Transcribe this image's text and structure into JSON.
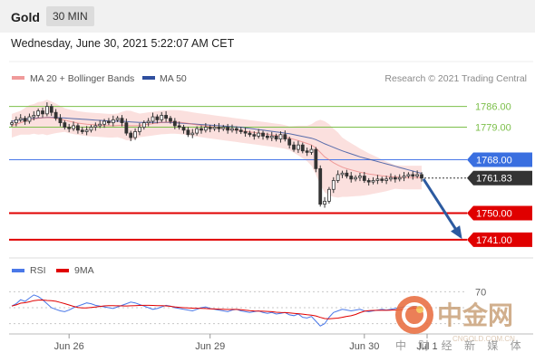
{
  "header": {
    "symbol": "Gold",
    "timeframe": "30 MIN"
  },
  "datetime": "Wednesday, June 30, 2021 5:22:07 AM CET",
  "legend": {
    "ma20_label": "MA 20 + Bollinger Bands",
    "ma50_label": "MA 50"
  },
  "credit": "Research © 2021 Trading Central",
  "rsi_legend": {
    "rsi_label": "RSI",
    "ma_label": "9MA"
  },
  "watermark": {
    "main": "中金网",
    "sub": "中 财 经 新 媒 体",
    "url": "CNGOLD.COM.CN"
  },
  "colors": {
    "candle": "#333333",
    "ma20": "#e86a6a",
    "ma50": "#2f4f9e",
    "bollinger": "#fbe0de",
    "green_level": "#7cbf4a",
    "blue_level": "#4a78e8",
    "red_level": "#e00000",
    "arrow": "#2c5aa0",
    "rsi": "#4a78e8",
    "rsi_ma": "#e00000"
  },
  "chart_data": {
    "type": "candlestick",
    "ylim": [
      1737,
      1792
    ],
    "x_ticks": [
      "Jun 26",
      "Jun 29",
      "Jun 30",
      "Jul 1"
    ],
    "closes": [
      1780.5,
      1781.5,
      1782.0,
      1781.0,
      1782.5,
      1783.0,
      1784.5,
      1783.5,
      1786.0,
      1784.0,
      1782.0,
      1780.5,
      1779.0,
      1778.5,
      1779.5,
      1778.0,
      1777.5,
      1778.0,
      1779.0,
      1779.5,
      1780.0,
      1781.0,
      1780.5,
      1781.5,
      1782.0,
      1780.5,
      1777.0,
      1775.5,
      1777.5,
      1779.0,
      1780.5,
      1781.0,
      1782.5,
      1781.5,
      1783.0,
      1782.0,
      1781.0,
      1779.5,
      1779.0,
      1778.0,
      1776.5,
      1777.0,
      1778.5,
      1778.0,
      1779.0,
      1778.5,
      1779.0,
      1778.5,
      1779.0,
      1778.0,
      1778.5,
      1778.0,
      1777.5,
      1777.0,
      1776.5,
      1776.0,
      1777.0,
      1776.0,
      1775.5,
      1776.0,
      1775.0,
      1776.5,
      1775.0,
      1773.0,
      1771.5,
      1773.0,
      1771.0,
      1770.5,
      1771.5,
      1765.0,
      1753.0,
      1754.0,
      1758.0,
      1761.0,
      1763.0,
      1763.5,
      1762.5,
      1761.5,
      1762.0,
      1762.5,
      1761.0,
      1760.5,
      1761.0,
      1761.5,
      1761.0,
      1761.5,
      1762.0,
      1761.5,
      1762.0,
      1762.5,
      1763.0,
      1762.5,
      1763.0,
      1761.8
    ],
    "ma20": [
      1779.5,
      1780.0,
      1780.5,
      1781.0,
      1781.5,
      1781.8,
      1782.0,
      1782.2,
      1782.3,
      1782.2,
      1782.0,
      1781.7,
      1781.4,
      1781.0,
      1780.7,
      1780.4,
      1780.2,
      1780.0,
      1779.9,
      1779.8,
      1779.7,
      1779.6,
      1779.5,
      1779.5,
      1779.6,
      1779.7,
      1779.6,
      1779.5,
      1779.5,
      1779.6,
      1779.8,
      1780.0,
      1780.2,
      1780.4,
      1780.6,
      1780.7,
      1780.8,
      1780.8,
      1780.7,
      1780.5,
      1780.3,
      1780.0,
      1779.8,
      1779.6,
      1779.4,
      1779.2,
      1779.0,
      1778.8,
      1778.6,
      1778.4,
      1778.2,
      1778.0,
      1777.8,
      1777.6,
      1777.4,
      1777.2,
      1777.0,
      1776.8,
      1776.6,
      1776.4,
      1776.2,
      1776.0,
      1775.7,
      1775.3,
      1774.9,
      1774.5,
      1774.0,
      1773.5,
      1773.0,
      1772.0,
      1770.5,
      1769.0,
      1768.0,
      1767.0,
      1766.2,
      1765.5,
      1765.0,
      1764.6,
      1764.2,
      1763.8,
      1763.5,
      1763.2,
      1763.0,
      1762.8,
      1762.6,
      1762.4,
      1762.3,
      1762.2,
      1762.1,
      1762.0,
      1762.0,
      1762.0,
      1762.0,
      1762.0
    ],
    "ma50": [
      1781.0,
      1781.2,
      1781.5,
      1781.7,
      1781.9,
      1782.0,
      1782.1,
      1782.2,
      1782.3,
      1782.3,
      1782.3,
      1782.2,
      1782.1,
      1782.0,
      1781.9,
      1781.8,
      1781.7,
      1781.6,
      1781.5,
      1781.4,
      1781.3,
      1781.2,
      1781.1,
      1781.0,
      1781.0,
      1781.0,
      1780.9,
      1780.8,
      1780.7,
      1780.6,
      1780.6,
      1780.6,
      1780.6,
      1780.6,
      1780.6,
      1780.6,
      1780.6,
      1780.5,
      1780.4,
      1780.3,
      1780.2,
      1780.1,
      1780.0,
      1779.9,
      1779.8,
      1779.7,
      1779.6,
      1779.5,
      1779.4,
      1779.3,
      1779.2,
      1779.1,
      1779.0,
      1778.8,
      1778.6,
      1778.4,
      1778.2,
      1778.0,
      1777.8,
      1777.6,
      1777.4,
      1777.2,
      1777.0,
      1776.8,
      1776.5,
      1776.2,
      1775.9,
      1775.6,
      1775.3,
      1774.8,
      1774.1,
      1773.4,
      1772.8,
      1772.2,
      1771.6,
      1771.0,
      1770.5,
      1770.0,
      1769.5,
      1769.0,
      1768.6,
      1768.2,
      1767.8,
      1767.4,
      1767.0,
      1766.6,
      1766.2,
      1765.8,
      1765.4,
      1765.0,
      1764.6,
      1764.2,
      1763.8,
      1763.4
    ],
    "bb_width": [
      4,
      4,
      4,
      4.5,
      5,
      5,
      5.5,
      5.5,
      6,
      5.5,
      5,
      4.5,
      4,
      4,
      4,
      4,
      4,
      4,
      4,
      4,
      4,
      4,
      4,
      4,
      4,
      4.5,
      5,
      5,
      4.5,
      4,
      4,
      4,
      4,
      4,
      4,
      4,
      4,
      4,
      4,
      4,
      4,
      4,
      4,
      4,
      4,
      4,
      4,
      4,
      4,
      4,
      4,
      4,
      4,
      4,
      4,
      4,
      4,
      4,
      4,
      4,
      4,
      4,
      4,
      4,
      4.5,
      5,
      5.5,
      6,
      7,
      9,
      11,
      12,
      12,
      11.5,
      11,
      10,
      9.5,
      9,
      8.5,
      8,
      7.5,
      7,
      6.5,
      6,
      5.5,
      5,
      4.5,
      4,
      4,
      4,
      4,
      4,
      4,
      4
    ],
    "rsi": [
      52,
      55,
      60,
      58,
      62,
      66,
      64,
      60,
      55,
      50,
      48,
      46,
      45,
      47,
      50,
      52,
      54,
      56,
      55,
      53,
      52,
      51,
      50,
      49,
      51,
      53,
      55,
      57,
      56,
      54,
      52,
      50,
      48,
      49,
      51,
      53,
      52,
      50,
      49,
      48,
      47,
      46,
      48,
      50,
      51,
      49,
      48,
      47,
      46,
      45,
      47,
      48,
      46,
      45,
      44,
      45,
      46,
      44,
      43,
      44,
      42,
      43,
      44,
      41,
      40,
      42,
      38,
      37,
      39,
      33,
      27,
      30,
      38,
      44,
      46,
      48,
      47,
      46,
      47,
      48,
      46,
      45,
      46,
      47,
      48,
      47,
      48,
      49,
      50,
      51,
      52,
      51,
      52,
      50
    ],
    "levels": [
      {
        "value": 1786.0,
        "label": "1786.00",
        "style": "green"
      },
      {
        "value": 1779.0,
        "label": "1779.00",
        "style": "green"
      },
      {
        "value": 1768.0,
        "label": "1768.00",
        "style": "blue"
      },
      {
        "value": 1761.83,
        "label": "1761.83",
        "style": "current"
      },
      {
        "value": 1750.0,
        "label": "1750.00",
        "style": "red"
      },
      {
        "value": 1741.0,
        "label": "1741.00",
        "style": "red"
      }
    ],
    "rsi_levels": [
      70
    ],
    "projection": {
      "from": 1761.5,
      "to": 1742.0
    }
  }
}
